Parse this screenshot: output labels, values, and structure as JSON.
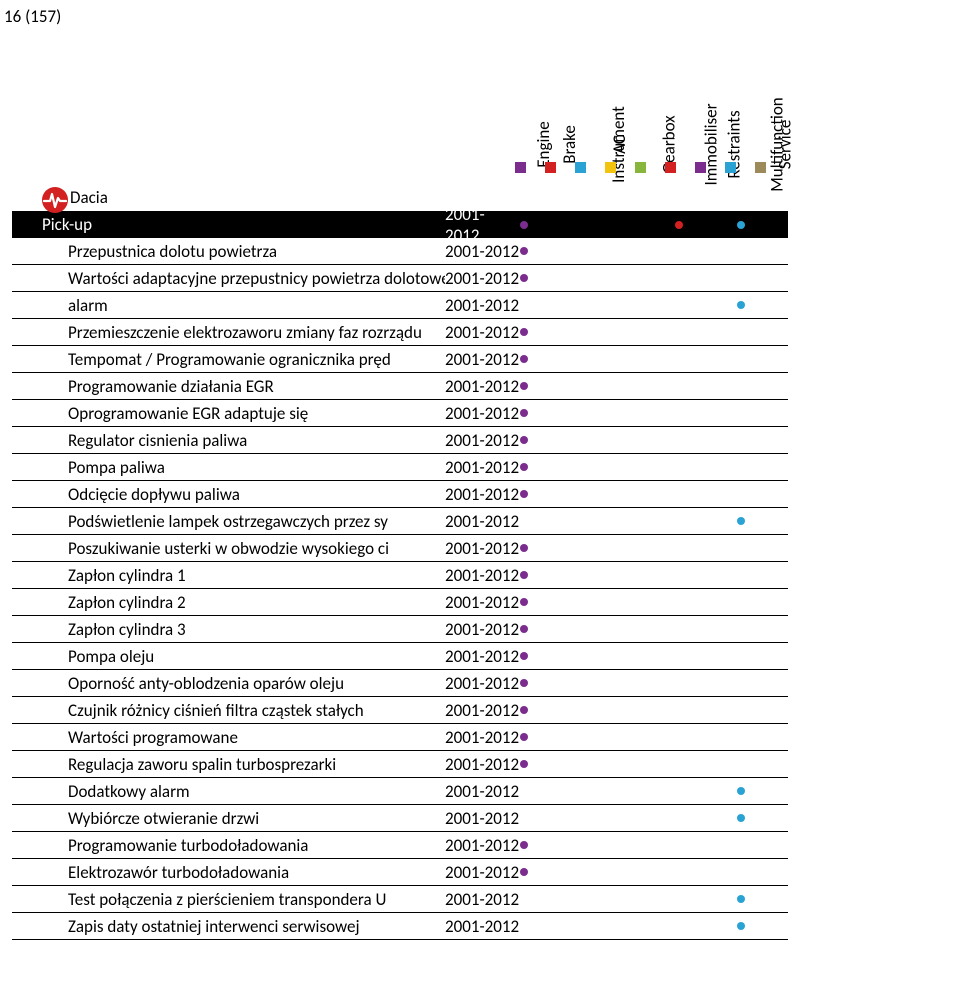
{
  "page_number": "16 (157)",
  "legend": [
    {
      "label": "Engine",
      "color": "#7b2d8e"
    },
    {
      "label": "Brake",
      "color": "#d32020"
    },
    {
      "label": "Instrument",
      "color": "#2aa3d4"
    },
    {
      "label": "AC",
      "color": "#f2c40f"
    },
    {
      "label": "Gearbox",
      "color": "#88b63c"
    },
    {
      "label": "Immobiliser",
      "color": "#d32020"
    },
    {
      "label": "Restraints",
      "color": "#7b2d8e"
    },
    {
      "label": "Multifunction",
      "color": "#2aa3d4"
    },
    {
      "label": "Service",
      "color": "#9c8a5a"
    }
  ],
  "dot_colors": {
    "engine": "#7b2d8e",
    "multifunction": "#2aa3d4",
    "immobiliser": "#d32020"
  },
  "brand": "Dacia",
  "model": {
    "name": "Pick-up",
    "years": "2001-2012"
  },
  "sub_header_dots": [
    0,
    null,
    null,
    null,
    null,
    5,
    null,
    7,
    null
  ],
  "rows": [
    {
      "label": "Przepustnica dolotu powietrza",
      "years": "2001-2012",
      "dots": [
        0
      ]
    },
    {
      "label": "Wartości adaptacyjne przepustnicy powietrza dolotowego",
      "years": "2001-2012",
      "dots": [
        0
      ]
    },
    {
      "label": "alarm",
      "years": "2001-2012",
      "dots": [
        7
      ]
    },
    {
      "label": "Przemieszczenie elektrozaworu zmiany faz rozrządu",
      "years": "2001-2012",
      "dots": [
        0
      ]
    },
    {
      "label": "Tempomat / Programowanie ogranicznika pręd",
      "years": "2001-2012",
      "dots": [
        0
      ]
    },
    {
      "label": "Programowanie działania EGR",
      "years": "2001-2012",
      "dots": [
        0
      ]
    },
    {
      "label": "Oprogramowanie EGR adaptuje się",
      "years": "2001-2012",
      "dots": [
        0
      ]
    },
    {
      "label": "Regulator cisnienia paliwa",
      "years": "2001-2012",
      "dots": [
        0
      ]
    },
    {
      "label": "Pompa paliwa",
      "years": "2001-2012",
      "dots": [
        0
      ]
    },
    {
      "label": "Odcięcie dopływu paliwa",
      "years": "2001-2012",
      "dots": [
        0
      ]
    },
    {
      "label": "Podświetlenie lampek ostrzegawczych przez sy",
      "years": "2001-2012",
      "dots": [
        7
      ]
    },
    {
      "label": "Poszukiwanie usterki w obwodzie wysokiego ci",
      "years": "2001-2012",
      "dots": [
        0
      ]
    },
    {
      "label": "Zapłon cylindra 1",
      "years": "2001-2012",
      "dots": [
        0
      ]
    },
    {
      "label": "Zapłon cylindra 2",
      "years": "2001-2012",
      "dots": [
        0
      ]
    },
    {
      "label": "Zapłon cylindra 3",
      "years": "2001-2012",
      "dots": [
        0
      ]
    },
    {
      "label": "Pompa oleju",
      "years": "2001-2012",
      "dots": [
        0
      ]
    },
    {
      "label": "Oporność anty-oblodzenia oparów oleju",
      "years": "2001-2012",
      "dots": [
        0
      ]
    },
    {
      "label": "Czujnik różnicy ciśnień filtra cząstek stałych",
      "years": "2001-2012",
      "dots": [
        0
      ]
    },
    {
      "label": "Wartości programowane",
      "years": "2001-2012",
      "dots": [
        0
      ]
    },
    {
      "label": "Regulacja zaworu spalin turbosprezarki",
      "years": "2001-2012",
      "dots": [
        0
      ]
    },
    {
      "label": "Dodatkowy alarm",
      "years": "2001-2012",
      "dots": [
        7
      ]
    },
    {
      "label": "Wybiórcze otwieranie drzwi",
      "years": "2001-2012",
      "dots": [
        7
      ]
    },
    {
      "label": "Programowanie turbodoładowania",
      "years": "2001-2012",
      "dots": [
        0
      ]
    },
    {
      "label": "Elektrozawór turbodoładowania",
      "years": "2001-2012",
      "dots": [
        0
      ]
    },
    {
      "label": "Test połączenia z pierścieniem transpondera U",
      "years": "2001-2012",
      "dots": [
        7
      ]
    },
    {
      "label": "Zapis daty ostatniej interwenci serwisowej",
      "years": "2001-2012",
      "dots": [
        7
      ]
    }
  ]
}
